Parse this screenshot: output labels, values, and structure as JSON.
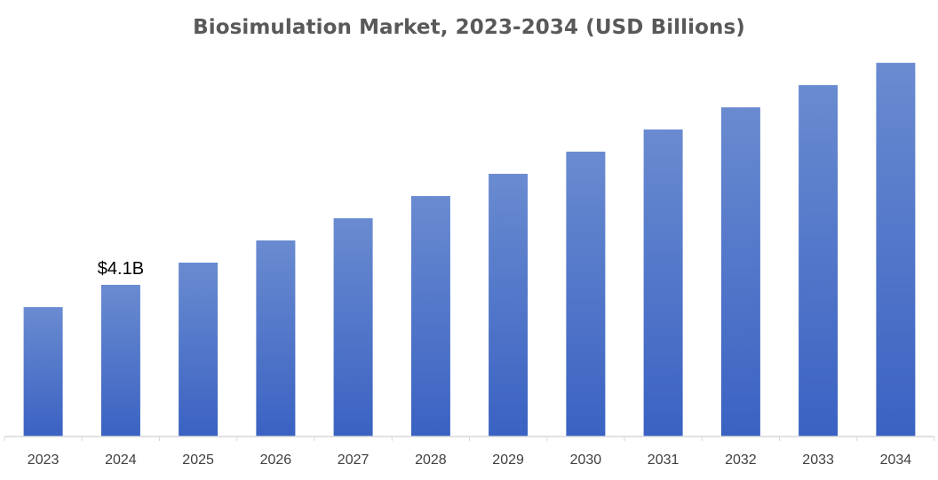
{
  "chart_data": {
    "type": "bar",
    "title": "Biosimulation Market, 2023-2034 (USD Billions)",
    "xlabel": "",
    "ylabel": "",
    "categories": [
      "2023",
      "2024",
      "2025",
      "2026",
      "2027",
      "2028",
      "2029",
      "2030",
      "2031",
      "2032",
      "2033",
      "2034"
    ],
    "values": [
      3.5,
      4.1,
      4.7,
      5.3,
      5.9,
      6.5,
      7.1,
      7.7,
      8.3,
      8.9,
      9.5,
      10.1
    ],
    "ylim": [
      0,
      10.6
    ],
    "grid": false,
    "legend": "none",
    "data_labels": [
      {
        "category": "2024",
        "text": "$4.1B"
      }
    ],
    "colors": {
      "bar_top": "#6a8bd0",
      "bar_bottom": "#3a62c2",
      "axis": "#d9d9d9",
      "title": "#595959",
      "tick_text": "#404040"
    }
  }
}
